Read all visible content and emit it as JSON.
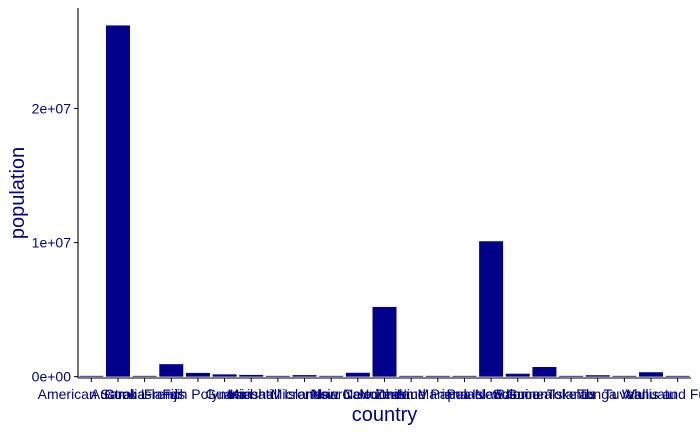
{
  "chart_data": {
    "type": "bar",
    "xlabel": "country",
    "ylabel": "population",
    "ylim": [
      -100000,
      27500000
    ],
    "y_ticks": [
      {
        "value": 0,
        "label": "0e+00"
      },
      {
        "value": 10000000,
        "label": "1e+07"
      },
      {
        "value": 20000000,
        "label": "2e+07"
      }
    ],
    "grid": false,
    "legend": "none",
    "color": "#00008B",
    "categories": [
      "American Samoa",
      "Australia",
      "Cook Islands",
      "Fiji",
      "French Polynesia",
      "Guam",
      "Kiribati",
      "Marshall Islands",
      "Micronesia",
      "Nauru",
      "New Caledonia",
      "New Zealand",
      "Niue",
      "Northern Mariana Islands",
      "Palau",
      "Papua New Guinea",
      "Samoa",
      "Solomon Islands",
      "Tokelau",
      "Tonga",
      "Tuvalu",
      "Vanuatu",
      "Wallis and Futuna"
    ],
    "values": [
      55000,
      26200000,
      17000,
      930000,
      280000,
      170000,
      130000,
      42000,
      115000,
      12000,
      290000,
      5200000,
      1900,
      50000,
      18000,
      10100000,
      220000,
      720000,
      1900,
      107000,
      11000,
      330000,
      11000
    ]
  }
}
